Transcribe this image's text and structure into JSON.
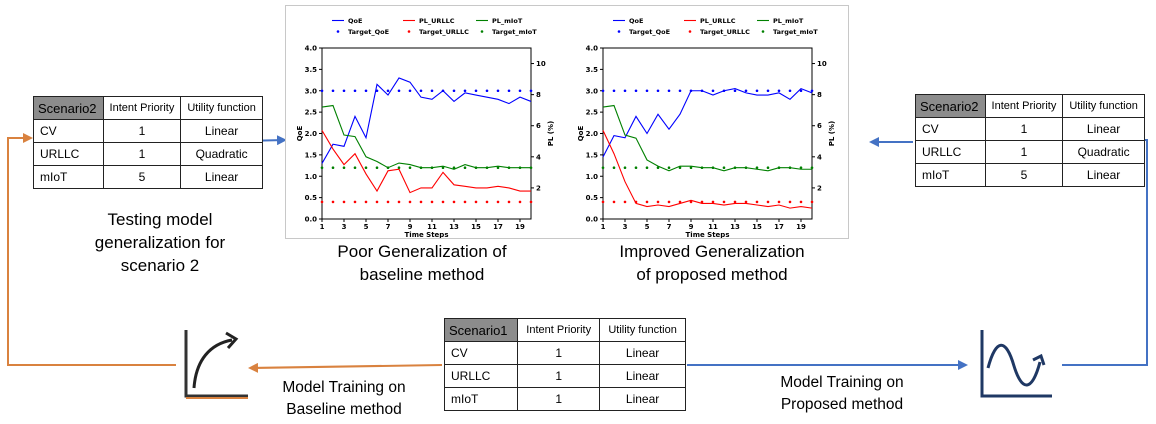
{
  "tables": {
    "left": {
      "header": [
        "Scenario2",
        "Intent Priority",
        "Utility function"
      ],
      "rows": [
        [
          "CV",
          "1",
          "Linear"
        ],
        [
          "URLLC",
          "1",
          "Quadratic"
        ],
        [
          "mIoT",
          "5",
          "Linear"
        ]
      ]
    },
    "right": {
      "header": [
        "Scenario2",
        "Intent Priority",
        "Utility function"
      ],
      "rows": [
        [
          "CV",
          "1",
          "Linear"
        ],
        [
          "URLLC",
          "1",
          "Quadratic"
        ],
        [
          "mIoT",
          "5",
          "Linear"
        ]
      ]
    },
    "bottom": {
      "header": [
        "Scenario1",
        "Intent Priority",
        "Utility function"
      ],
      "rows": [
        [
          "CV",
          "1",
          "Linear"
        ],
        [
          "URLLC",
          "1",
          "Linear"
        ],
        [
          "mIoT",
          "1",
          "Linear"
        ]
      ]
    }
  },
  "labels": {
    "testing": [
      "Testing model",
      "generalization for",
      "scenario 2"
    ],
    "poor": [
      "Poor Generalization of",
      "baseline method"
    ],
    "improved": [
      "Improved Generalization",
      "of proposed method"
    ],
    "train_baseline": [
      "Model Training on",
      "Baseline method"
    ],
    "train_proposed": [
      "Model Training on",
      "Proposed  method"
    ]
  },
  "icons": {
    "baseline": "growth-curve-icon",
    "proposed": "sine-wave-icon"
  },
  "colors": {
    "baseline_arrow": "#d9823f",
    "proposed_arrow": "#4472c4",
    "table_header": "#8c8c8c",
    "qoe": "#0000ff",
    "pl_urllc": "#ff0000",
    "pl_miot": "#008000"
  },
  "chart_data": [
    {
      "type": "line",
      "xlabel": "Time Steps",
      "ylabel": "QoE",
      "y2label": "PL (%)",
      "xlim": [
        1,
        20
      ],
      "ylim": [
        0,
        4
      ],
      "y2lim": [
        0,
        11
      ],
      "xticks": [
        1,
        3,
        5,
        7,
        9,
        11,
        13,
        15,
        17,
        19
      ],
      "yticks": [
        "0.0",
        "0.5",
        "1.0",
        "1.5",
        "2.0",
        "2.5",
        "3.0",
        "3.5",
        "4.0"
      ],
      "y2ticks": [
        2,
        4,
        6,
        8,
        10
      ],
      "legend": [
        "QoE",
        "Target_QoE",
        "PL_URLLC",
        "Target_URLLC",
        "PL_mIoT",
        "Target_mIoT"
      ],
      "legend_position": "top",
      "x": [
        1,
        2,
        3,
        4,
        5,
        6,
        7,
        8,
        9,
        10,
        11,
        12,
        13,
        14,
        15,
        16,
        17,
        18,
        19,
        20
      ],
      "series": [
        {
          "name": "QoE",
          "axis": "left",
          "style": "line",
          "color": "#0000ff",
          "values": [
            1.3,
            1.75,
            1.7,
            2.4,
            1.9,
            3.15,
            2.9,
            3.3,
            3.2,
            2.85,
            2.8,
            3.0,
            2.75,
            2.95,
            2.9,
            2.85,
            2.8,
            2.7,
            2.85,
            2.75
          ]
        },
        {
          "name": "Target_QoE",
          "axis": "left",
          "style": "dots",
          "color": "#0000ff",
          "values": [
            3.0,
            3.0,
            3.0,
            3.0,
            3.0,
            3.0,
            3.0,
            3.0,
            3.0,
            3.0,
            3.0,
            3.0,
            3.0,
            3.0,
            3.0,
            3.0,
            3.0,
            3.0,
            3.0,
            3.0
          ]
        },
        {
          "name": "PL_URLLC",
          "axis": "right",
          "style": "line",
          "color": "#ff0000",
          "values": [
            5.7,
            4.5,
            3.5,
            4.2,
            2.9,
            1.8,
            3.1,
            3.2,
            1.7,
            2.0,
            2.0,
            3.0,
            2.2,
            2.1,
            2.0,
            2.0,
            2.1,
            2.0,
            1.8,
            1.8
          ]
        },
        {
          "name": "Target_URLLC",
          "axis": "right",
          "style": "dots",
          "color": "#ff0000",
          "values": [
            1.1,
            1.1,
            1.1,
            1.1,
            1.1,
            1.1,
            1.1,
            1.1,
            1.1,
            1.1,
            1.1,
            1.1,
            1.1,
            1.1,
            1.1,
            1.1,
            1.1,
            1.1,
            1.1,
            1.1
          ]
        },
        {
          "name": "PL_mIoT",
          "axis": "right",
          "style": "line",
          "color": "#008000",
          "values": [
            7.2,
            7.3,
            5.4,
            5.3,
            4.0,
            3.7,
            3.3,
            3.6,
            3.5,
            3.3,
            3.3,
            3.4,
            3.2,
            3.5,
            3.3,
            3.3,
            3.4,
            3.3,
            3.3,
            3.3
          ]
        },
        {
          "name": "Target_mIoT",
          "axis": "right",
          "style": "dots",
          "color": "#008000",
          "values": [
            3.3,
            3.3,
            3.3,
            3.3,
            3.3,
            3.3,
            3.3,
            3.3,
            3.3,
            3.3,
            3.3,
            3.3,
            3.3,
            3.3,
            3.3,
            3.3,
            3.3,
            3.3,
            3.3,
            3.3
          ]
        }
      ]
    },
    {
      "type": "line",
      "xlabel": "Time Steps",
      "ylabel": "QoE",
      "y2label": "PL (%)",
      "xlim": [
        1,
        20
      ],
      "ylim": [
        0,
        4
      ],
      "y2lim": [
        0,
        11
      ],
      "xticks": [
        1,
        3,
        5,
        7,
        9,
        11,
        13,
        15,
        17,
        19
      ],
      "yticks": [
        "0.0",
        "0.5",
        "1.0",
        "1.5",
        "2.0",
        "2.5",
        "3.0",
        "3.5",
        "4.0"
      ],
      "y2ticks": [
        2,
        4,
        6,
        8,
        10
      ],
      "legend": [
        "QoE",
        "Target_QoE",
        "PL_URLLC",
        "Target_URLLC",
        "PL_mIoT",
        "Target_mIoT"
      ],
      "legend_position": "top",
      "x": [
        1,
        2,
        3,
        4,
        5,
        6,
        7,
        8,
        9,
        10,
        11,
        12,
        13,
        14,
        15,
        16,
        17,
        18,
        19,
        20
      ],
      "series": [
        {
          "name": "QoE",
          "axis": "left",
          "style": "line",
          "color": "#0000ff",
          "values": [
            1.45,
            1.95,
            1.9,
            2.4,
            2.0,
            2.45,
            2.1,
            2.45,
            3.0,
            3.0,
            2.9,
            3.0,
            3.05,
            2.95,
            2.9,
            2.9,
            2.95,
            2.8,
            3.05,
            2.95
          ]
        },
        {
          "name": "Target_QoE",
          "axis": "left",
          "style": "dots",
          "color": "#0000ff",
          "values": [
            3.0,
            3.0,
            3.0,
            3.0,
            3.0,
            3.0,
            3.0,
            3.0,
            3.0,
            3.0,
            3.0,
            3.0,
            3.0,
            3.0,
            3.0,
            3.0,
            3.0,
            3.0,
            3.0,
            3.0
          ]
        },
        {
          "name": "PL_URLLC",
          "axis": "right",
          "style": "line",
          "color": "#ff0000",
          "values": [
            5.7,
            4.2,
            2.4,
            1.0,
            0.8,
            0.9,
            0.8,
            1.0,
            1.2,
            1.0,
            1.0,
            0.9,
            1.0,
            1.0,
            0.9,
            0.8,
            0.9,
            0.7,
            0.8,
            0.7
          ]
        },
        {
          "name": "Target_URLLC",
          "axis": "right",
          "style": "dots",
          "color": "#ff0000",
          "values": [
            1.1,
            1.1,
            1.1,
            1.1,
            1.1,
            1.1,
            1.1,
            1.1,
            1.1,
            1.1,
            1.1,
            1.1,
            1.1,
            1.1,
            1.1,
            1.1,
            1.1,
            1.1,
            1.1,
            1.1
          ]
        },
        {
          "name": "PL_mIoT",
          "axis": "right",
          "style": "line",
          "color": "#008000",
          "values": [
            7.2,
            7.3,
            5.4,
            5.2,
            3.8,
            3.4,
            3.1,
            3.4,
            3.4,
            3.3,
            3.3,
            3.1,
            3.3,
            3.3,
            3.2,
            3.1,
            3.3,
            3.3,
            3.2,
            3.2
          ]
        },
        {
          "name": "Target_mIoT",
          "axis": "right",
          "style": "dots",
          "color": "#008000",
          "values": [
            3.3,
            3.3,
            3.3,
            3.3,
            3.3,
            3.3,
            3.3,
            3.3,
            3.3,
            3.3,
            3.3,
            3.3,
            3.3,
            3.3,
            3.3,
            3.3,
            3.3,
            3.3,
            3.3,
            3.3
          ]
        }
      ]
    }
  ]
}
